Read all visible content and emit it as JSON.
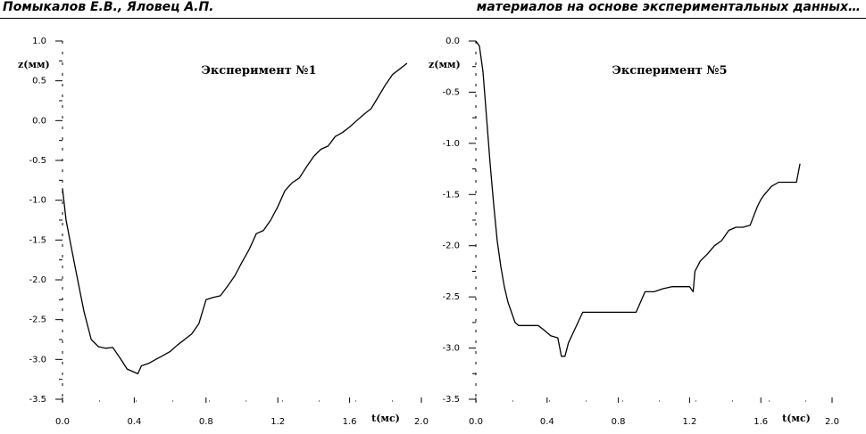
{
  "header": {
    "left": "Помыкалов Е.В., Яловец А.П.",
    "right": "материалов на основе экспериментальных данных…"
  },
  "chart_data": [
    {
      "type": "line",
      "title": "Эксперимент №1",
      "xlabel": "t(мс)",
      "ylabel": "z(мм)",
      "xlim": [
        0,
        2.0
      ],
      "ylim": [
        -3.5,
        1.0
      ],
      "xticks": [
        0.0,
        0.4,
        0.8,
        1.2,
        1.6,
        2.0
      ],
      "xtick_labels": [
        "0.0",
        "0.4",
        "0.8",
        "1.2",
        "1.6",
        "2.0"
      ],
      "yticks": [
        1.0,
        0.5,
        0.0,
        -0.5,
        -1.0,
        -1.5,
        -2.0,
        -2.5,
        -3.0,
        -3.5
      ],
      "ytick_labels": [
        "1.0",
        "0.5",
        "0.0",
        "-0.5",
        "-1.0",
        "-1.5",
        "-2.0",
        "-2.5",
        "-3.0",
        "-3.5"
      ],
      "grid": false,
      "series": [
        {
          "x": [
            0.0,
            0.02,
            0.05,
            0.08,
            0.12,
            0.16,
            0.2,
            0.24,
            0.28,
            0.32,
            0.36,
            0.4,
            0.42,
            0.44,
            0.48,
            0.52,
            0.56,
            0.6,
            0.64,
            0.68,
            0.72,
            0.76,
            0.8,
            0.84,
            0.88,
            0.92,
            0.96,
            1.0,
            1.04,
            1.08,
            1.12,
            1.16,
            1.2,
            1.24,
            1.28,
            1.32,
            1.36,
            1.4,
            1.44,
            1.48,
            1.52,
            1.56,
            1.6,
            1.64,
            1.68,
            1.72,
            1.76,
            1.8,
            1.84,
            1.88,
            1.92
          ],
          "y": [
            -0.85,
            -1.25,
            -1.6,
            -1.95,
            -2.4,
            -2.75,
            -2.84,
            -2.86,
            -2.85,
            -2.98,
            -3.12,
            -3.16,
            -3.18,
            -3.08,
            -3.05,
            -3.0,
            -2.95,
            -2.9,
            -2.82,
            -2.75,
            -2.68,
            -2.55,
            -2.25,
            -2.22,
            -2.2,
            -2.08,
            -1.95,
            -1.78,
            -1.62,
            -1.42,
            -1.38,
            -1.25,
            -1.08,
            -0.88,
            -0.78,
            -0.72,
            -0.58,
            -0.45,
            -0.36,
            -0.32,
            -0.2,
            -0.15,
            -0.08,
            0.0,
            0.08,
            0.15,
            0.3,
            0.45,
            0.58,
            0.65,
            0.72
          ]
        }
      ]
    },
    {
      "type": "line",
      "title": "Эксперимент №5",
      "xlabel": "t(мс)",
      "ylabel": "z(мм)",
      "xlim": [
        0,
        2.0
      ],
      "ylim": [
        -3.5,
        0.0
      ],
      "xticks": [
        0.0,
        0.4,
        0.8,
        1.2,
        1.6,
        2.0
      ],
      "xtick_labels": [
        "0.0",
        "0.4",
        "0.8",
        "1.2",
        "1.6",
        "2.0"
      ],
      "yticks": [
        0.0,
        -0.5,
        -1.0,
        -1.5,
        -2.0,
        -2.5,
        -3.0,
        -3.5
      ],
      "ytick_labels": [
        "0.0",
        "-0.5",
        "-1.0",
        "-1.5",
        "-2.0",
        "-2.5",
        "-3.0",
        "-3.5"
      ],
      "grid": false,
      "series": [
        {
          "x": [
            0.0,
            0.02,
            0.04,
            0.06,
            0.08,
            0.1,
            0.12,
            0.14,
            0.16,
            0.18,
            0.2,
            0.22,
            0.24,
            0.26,
            0.28,
            0.3,
            0.35,
            0.38,
            0.42,
            0.46,
            0.48,
            0.5,
            0.52,
            0.56,
            0.6,
            0.7,
            0.8,
            0.9,
            0.95,
            1.0,
            1.05,
            1.1,
            1.15,
            1.2,
            1.22,
            1.23,
            1.26,
            1.3,
            1.34,
            1.38,
            1.42,
            1.46,
            1.5,
            1.54,
            1.58,
            1.6,
            1.62,
            1.66,
            1.7,
            1.76,
            1.8,
            1.82
          ],
          "y": [
            0.0,
            -0.05,
            -0.3,
            -0.75,
            -1.2,
            -1.6,
            -1.95,
            -2.2,
            -2.4,
            -2.55,
            -2.65,
            -2.75,
            -2.78,
            -2.78,
            -2.78,
            -2.78,
            -2.78,
            -2.82,
            -2.88,
            -2.9,
            -3.08,
            -3.08,
            -2.95,
            -2.8,
            -2.65,
            -2.65,
            -2.65,
            -2.65,
            -2.45,
            -2.45,
            -2.42,
            -2.4,
            -2.4,
            -2.4,
            -2.45,
            -2.25,
            -2.15,
            -2.08,
            -2.0,
            -1.95,
            -1.85,
            -1.82,
            -1.82,
            -1.8,
            -1.62,
            -1.55,
            -1.5,
            -1.42,
            -1.38,
            -1.38,
            -1.38,
            -1.2
          ]
        }
      ]
    }
  ]
}
